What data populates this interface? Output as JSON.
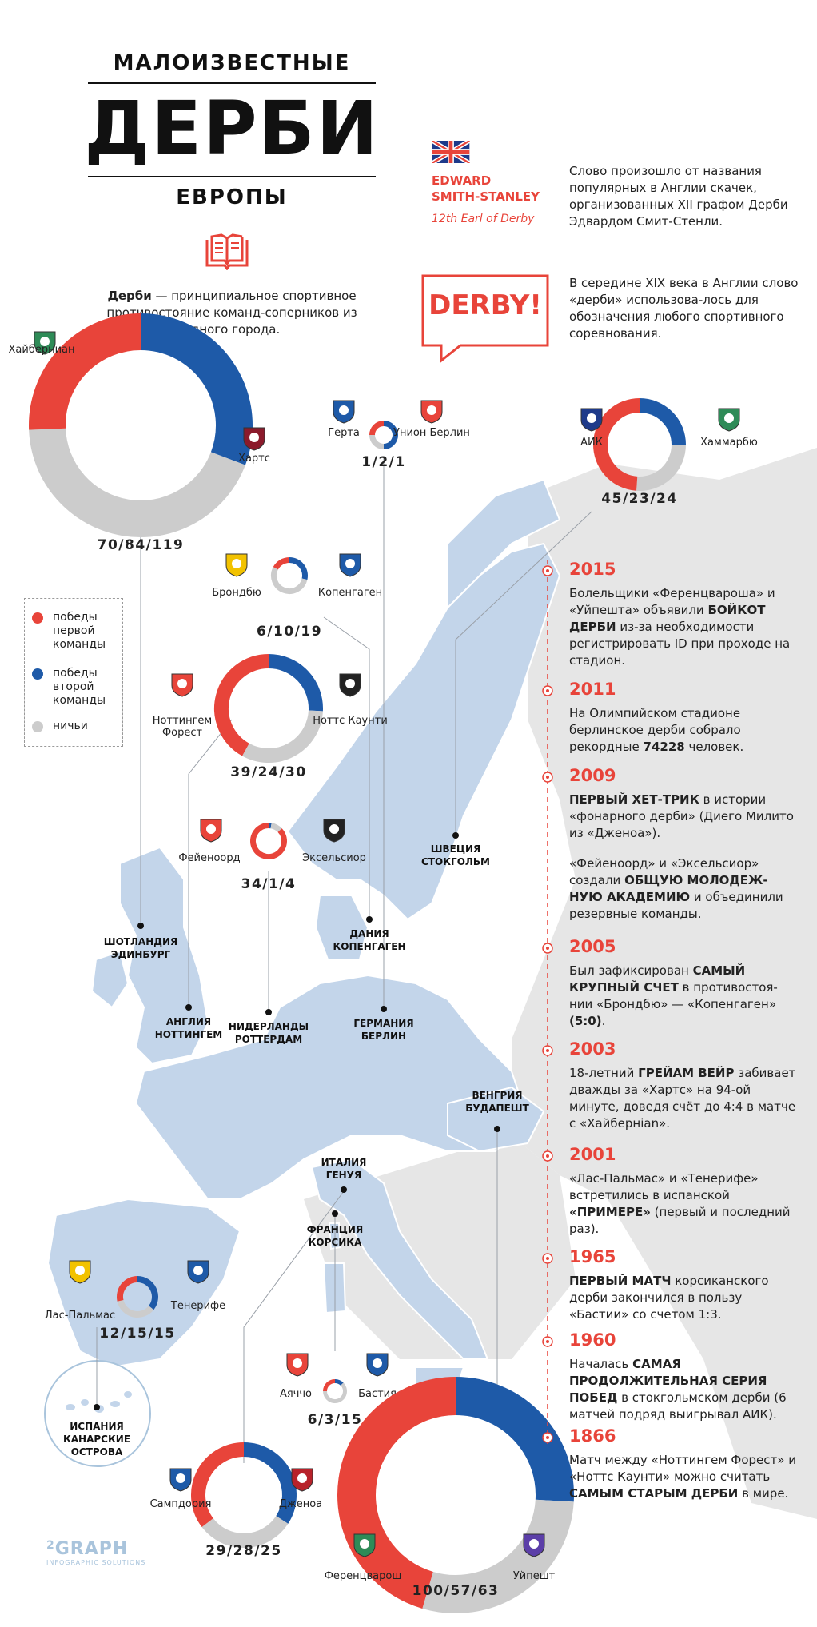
{
  "header": {
    "line1": "МАЛОИЗВЕСТНЫЕ",
    "line2": "ДЕРБИ",
    "line3": "ЕВРОПЫ"
  },
  "definition": {
    "term": "Дерби",
    "text": " — принципиальное спортивное противостояние команд-соперников из одного города."
  },
  "origin": {
    "name1": "EDWARD",
    "name2": "SMITH-STANLEY",
    "title": "12th Earl of Derby",
    "text": "Слово произошло от названия популярных в Англии скачек, организованных XII графом Дерби Эдвардом Смит-Стенли."
  },
  "derby_sign": {
    "label": "DERBY!",
    "text": "В середине XIX века в Англии слово «дерби» использова-лось для обозначения любого спортивного соревнования."
  },
  "legend": {
    "items": [
      {
        "label": "победы первой команды",
        "color": "#e8443a"
      },
      {
        "label": "победы второй команды",
        "color": "#1e5aa8"
      },
      {
        "label": "ничьи",
        "color": "#cccccc"
      }
    ]
  },
  "colors": {
    "red": "#e8443a",
    "blue": "#1e5aa8",
    "gray": "#cccccc",
    "map_blue": "#c3d5ea",
    "map_gray": "#e6e6e6"
  },
  "derbies": [
    {
      "id": "edinburgh",
      "team1": "Хайберниан",
      "team2": "Хартс",
      "score": "70/84/119",
      "values": [
        70,
        84,
        119
      ],
      "city1": "ШОТЛАНДИЯ",
      "city2": "ЭДИНБУРГ"
    },
    {
      "id": "berlin",
      "team1": "Герта",
      "team2": "Унион Берлин",
      "score": "1/2/1",
      "values": [
        1,
        2,
        1
      ],
      "city1": "ГЕРМАНИЯ",
      "city2": "БЕРЛИН"
    },
    {
      "id": "stockholm",
      "team1": "АИК",
      "team2": "Хаммарбю",
      "score": "45/23/24",
      "values": [
        45,
        23,
        24
      ],
      "city1": "ШВЕЦИЯ",
      "city2": "СТОКГОЛЬМ"
    },
    {
      "id": "copenhagen",
      "team1": "Брондбю",
      "team2": "Копенгаген",
      "score": "6/10/19",
      "values": [
        6,
        10,
        19
      ],
      "city1": "ДАНИЯ",
      "city2": "КОПЕНГАГЕН"
    },
    {
      "id": "nottingham",
      "team1": "Ноттингем Форест",
      "team2": "Ноттс Каунти",
      "score": "39/24/30",
      "values": [
        39,
        24,
        30
      ],
      "city1": "АНГЛИЯ",
      "city2": "НОТТИНГЕМ"
    },
    {
      "id": "rotterdam",
      "team1": "Фейеноорд",
      "team2": "Эксельсиор",
      "score": "34/1/4",
      "values": [
        34,
        1,
        4
      ],
      "city1": "НИДЕРЛАНДЫ",
      "city2": "РОТТЕРДАМ"
    },
    {
      "id": "canary",
      "team1": "Лас-Пальмас",
      "team2": "Тенерифе",
      "score": "12/15/15",
      "values": [
        12,
        15,
        15
      ],
      "city1": "ИСПАНИЯ",
      "city2": "КАНАРСКИЕ ОСТРОВА"
    },
    {
      "id": "corsica",
      "team1": "Аяччо",
      "team2": "Бастия",
      "score": "6/3/15",
      "values": [
        6,
        3,
        15
      ],
      "city1": "ФРАНЦИЯ",
      "city2": "КОРСИКА"
    },
    {
      "id": "genoa",
      "team1": "Сампдория",
      "team2": "Дженоа",
      "score": "29/28/25",
      "values": [
        29,
        28,
        25
      ],
      "city1": "ИТАЛИЯ",
      "city2": "ГЕНУЯ"
    },
    {
      "id": "budapest",
      "team1": "Ференцварош",
      "team2": "Уйпешт",
      "score": "100/57/63",
      "values": [
        100,
        57,
        63
      ],
      "city1": "ВЕНГРИЯ",
      "city2": "БУДАПЕШТ"
    }
  ],
  "timeline": [
    {
      "year": "2015",
      "parts": [
        [
          "Болельщики «Ференцвароша» и «Уйпешта» объявили ",
          0
        ],
        [
          "БОЙКОТ ДЕРБИ",
          1
        ],
        [
          " из-за необходимости регистрировать ID при проходе на стадион.",
          0
        ]
      ]
    },
    {
      "year": "2011",
      "parts": [
        [
          "На Олимпийском стадионе берлинское дерби собрало рекордные ",
          0
        ],
        [
          "74228",
          1
        ],
        [
          " человек.",
          0
        ]
      ]
    },
    {
      "year": "2009",
      "parts": [
        [
          "ПЕРВЫЙ ХЕТ-ТРИК",
          1
        ],
        [
          " в истории «фонарного дерби» (Диего Милито из «Дженоа»).",
          0
        ]
      ]
    },
    {
      "year": "",
      "parts": [
        [
          "«Фейеноорд» и «Эксельсиор» создали ",
          0
        ],
        [
          "ОБЩУЮ МОЛОДЕЖ-НУЮ АКАДЕМИЮ",
          1
        ],
        [
          " и объединили резервные команды.",
          0
        ]
      ]
    },
    {
      "year": "2005",
      "parts": [
        [
          "Был зафиксирован ",
          0
        ],
        [
          "САМЫЙ КРУПНЫЙ СЧЕТ",
          1
        ],
        [
          " в противостоя-нии «Брондбю» — «Копенгаген» ",
          0
        ],
        [
          "(5:0)",
          1
        ],
        [
          ".",
          0
        ]
      ]
    },
    {
      "year": "2003",
      "parts": [
        [
          "18-летний ",
          0
        ],
        [
          "ГРЕЙАМ ВЕЙР",
          1
        ],
        [
          " забивает дважды за «Хартс» на 94-ой минуте, доведя счёт до 4:4 в матче с «Хайбернian».",
          0
        ]
      ]
    },
    {
      "year": "2001",
      "parts": [
        [
          "«Лас-Пальмас» и «Тенерифе» встретились в испанской ",
          0
        ],
        [
          "«ПРИМЕРЕ»",
          1
        ],
        [
          " (первый и последний раз).",
          0
        ]
      ]
    },
    {
      "year": "1965",
      "parts": [
        [
          "ПЕРВЫЙ МАТЧ",
          1
        ],
        [
          " корсиканского дерби закончился в пользу «Бастии» со счетом 1:3.",
          0
        ]
      ]
    },
    {
      "year": "1960",
      "parts": [
        [
          "Началась ",
          0
        ],
        [
          "САМАЯ ПРОДОЛЖИТЕЛЬНАЯ СЕРИЯ ПОБЕД",
          1
        ],
        [
          " в стокгольмском дерби (6 матчей подряд выигрывал АИК).",
          0
        ]
      ]
    },
    {
      "year": "1866",
      "parts": [
        [
          "Матч между «Ноттингем Форест» и «Ноттс Каунти» можно считать ",
          0
        ],
        [
          "САМЫМ СТАРЫМ ДЕРБИ",
          1
        ],
        [
          " в мире.",
          0
        ]
      ]
    }
  ],
  "footer": {
    "logo": "GRAPH",
    "logo_digit": "2",
    "sub": "INFOGRAPHIC SOLUTIONS"
  }
}
